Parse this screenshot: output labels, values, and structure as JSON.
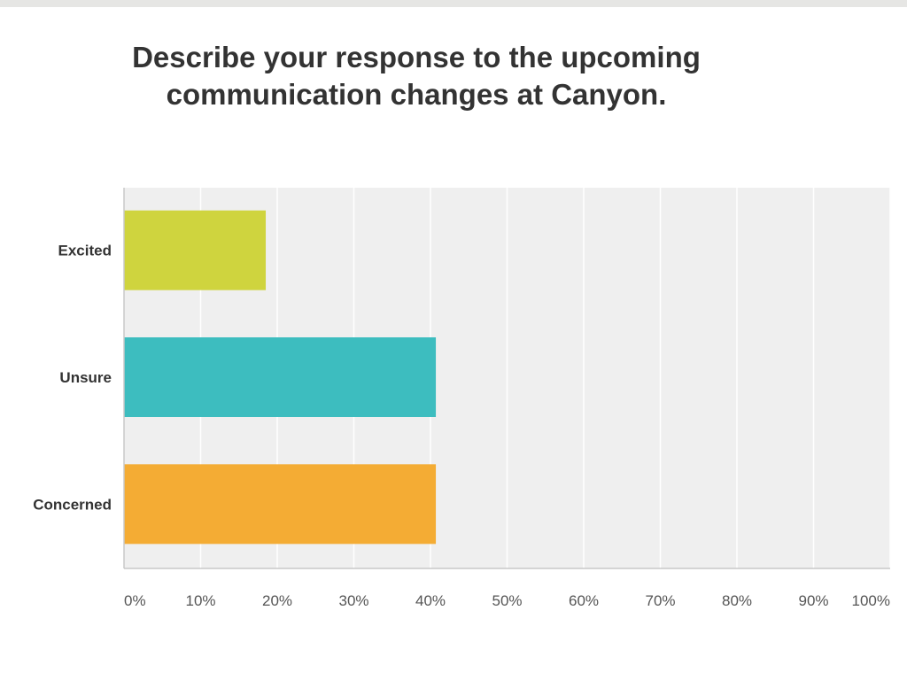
{
  "chart_data": {
    "type": "bar",
    "orientation": "horizontal",
    "title_lines": [
      "Describe your response to the upcoming",
      "communication changes at Canyon."
    ],
    "categories": [
      "Excited",
      "Unsure",
      "Concerned"
    ],
    "values": [
      18.5,
      40.7,
      40.7
    ],
    "colors": [
      "#cfd43e",
      "#3dbdbf",
      "#f4ac34"
    ],
    "x_ticks": [
      "0%",
      "10%",
      "20%",
      "30%",
      "40%",
      "50%",
      "60%",
      "70%",
      "80%",
      "90%",
      "100%"
    ],
    "xlim": [
      0,
      100
    ],
    "grid": true,
    "legend": "none"
  }
}
